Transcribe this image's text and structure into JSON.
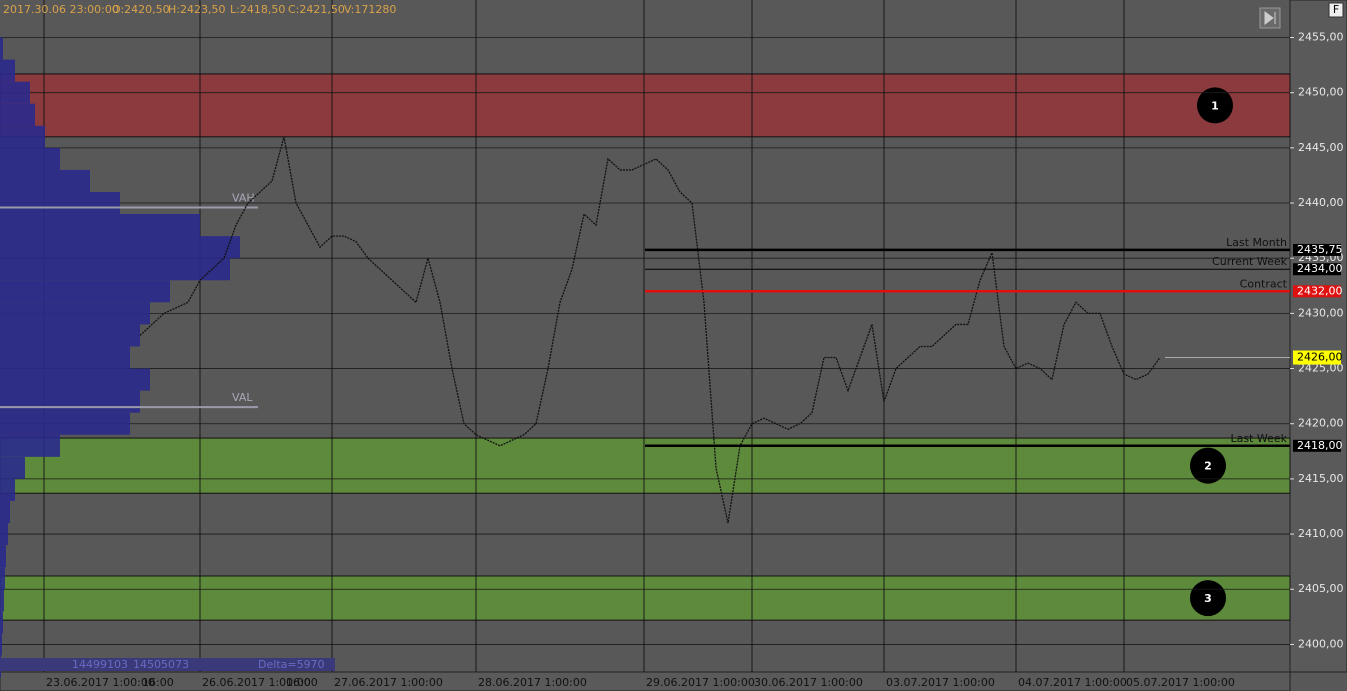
{
  "chart_data": {
    "type": "line",
    "header": [
      "2017.30.06 23:00:00",
      "O:2420,50",
      "H:2423,50",
      "L:2418,50",
      "C:2421,50",
      "V:171280"
    ],
    "footer": [
      "14499103",
      "14505073",
      "Delta=5970"
    ],
    "categories": [
      "23.06.2017 1:00:00",
      null,
      null,
      null,
      null,
      null,
      null,
      null,
      "16:00",
      null,
      null,
      null,
      null,
      "26.06.2017 1:00:00",
      null,
      null,
      null,
      null,
      null,
      null,
      "16:00",
      null,
      null,
      null,
      "27.06.2017 1:00:00",
      null,
      null,
      null,
      null,
      null,
      null,
      null,
      null,
      null,
      null,
      null,
      "28.06.2017 1:00:00",
      null,
      null,
      null,
      null,
      null,
      null,
      null,
      null,
      null,
      null,
      null,
      null,
      null,
      "29.06.2017 1:00:00",
      null,
      null,
      null,
      null,
      null,
      null,
      null,
      null,
      "30.06.2017 1:00:00",
      null,
      null,
      null,
      null,
      null,
      null,
      null,
      null,
      null,
      null,
      "03.07.2017 1:00:00",
      null,
      null,
      null,
      null,
      null,
      null,
      null,
      null,
      null,
      null,
      "04.07.2017 1:00:00",
      null,
      null,
      null,
      null,
      null,
      null,
      null,
      null,
      "05.07.2017 1:00:00",
      null,
      null,
      null
    ],
    "values": [
      null,
      null,
      null,
      null,
      null,
      null,
      null,
      null,
      2428,
      2429,
      2430,
      2430.5,
      2431,
      2433,
      2434,
      2435,
      2438,
      2440,
      2441,
      2442,
      2446,
      2440,
      2438,
      2436,
      2437,
      2437,
      2436.5,
      2435,
      2434,
      2433,
      2432,
      2431,
      2435,
      2431,
      2425,
      2420,
      2419,
      2418.5,
      2418,
      2418.5,
      2419,
      2420,
      2425,
      2431,
      2434,
      2439,
      2438,
      2444,
      2443,
      2443,
      2443.5,
      2444,
      2443,
      2441,
      2440,
      2431,
      2416,
      2411,
      2418,
      2420,
      2420.5,
      2420,
      2419.5,
      2420,
      2421,
      2426,
      2426,
      2423,
      2426,
      2429,
      2422,
      2425,
      2426,
      2427,
      2427,
      2428,
      2429,
      2429,
      2433,
      2435.5,
      2427,
      2425,
      2425.5,
      2425,
      2424,
      2429,
      2431,
      2430,
      2430,
      2427,
      2424.5,
      2424,
      2424.5,
      2426
    ],
    "color": "#111111",
    "ylim": [
      2397.5,
      2458.4
    ],
    "yticks": [
      {
        "value": 2400,
        "label": "2400,00"
      },
      {
        "value": 2405,
        "label": "2405,00"
      },
      {
        "value": 2410,
        "label": "2410,00"
      },
      {
        "value": 2415,
        "label": "2415,00"
      },
      {
        "value": 2420,
        "label": "2420,00"
      },
      {
        "value": 2425,
        "label": "2425,00"
      },
      {
        "value": 2430,
        "label": "2430,00"
      },
      {
        "value": 2435,
        "label": "2435,00"
      },
      {
        "value": 2440,
        "label": "2440,00"
      },
      {
        "value": 2445,
        "label": "2445,00"
      },
      {
        "value": 2450,
        "label": "2450,00"
      },
      {
        "value": 2455,
        "label": "2455,00"
      }
    ],
    "grid": true,
    "zones": [
      {
        "from": 2446.0,
        "to": 2451.7,
        "color": "#8b3b3d",
        "label": "1"
      },
      {
        "from": 2413.7,
        "to": 2418.7,
        "color": "#5e8a3b",
        "label": "2"
      },
      {
        "from": 2402.2,
        "to": 2406.2,
        "color": "#5e8a3b",
        "label": "3"
      }
    ],
    "levels": [
      {
        "name": "Last Month",
        "value": 2435.75,
        "label": "2435,75",
        "color": "#000000",
        "thick": true
      },
      {
        "name": "Current Week",
        "value": 2434,
        "label": "2434,00",
        "color": "#000000",
        "thick": false
      },
      {
        "name": "Contract",
        "value": 2432,
        "label": "2432,00",
        "color": "#e01010",
        "thick": true
      },
      {
        "name": "Last Week",
        "value": 2418,
        "label": "2418,00",
        "color": "#000000",
        "thick": true
      }
    ],
    "last_price": {
      "value": 2426,
      "label": "2426,00",
      "color": "#ffff00"
    },
    "value_area": [
      {
        "name": "VAH",
        "value": 2439.6
      },
      {
        "name": "VAL",
        "value": 2421.5
      }
    ],
    "profile": {
      "bins": [
        2397,
        2399,
        2401,
        2403,
        2405,
        2407,
        2409,
        2411,
        2413,
        2415,
        2417,
        2419,
        2421,
        2423,
        2425,
        2427,
        2429,
        2431,
        2433,
        2435,
        2437,
        2439,
        2441,
        2443,
        2445,
        2447,
        2449,
        2451,
        2453,
        2455,
        2457
      ],
      "counts": [
        1,
        2,
        3,
        4,
        5,
        6,
        8,
        10,
        15,
        25,
        60,
        130,
        140,
        150,
        130,
        140,
        150,
        170,
        230,
        240,
        200,
        120,
        90,
        60,
        45,
        35,
        30,
        15,
        3,
        0
      ],
      "xlim": [
        0,
        260
      ],
      "color": "#2a2a8c"
    }
  }
}
